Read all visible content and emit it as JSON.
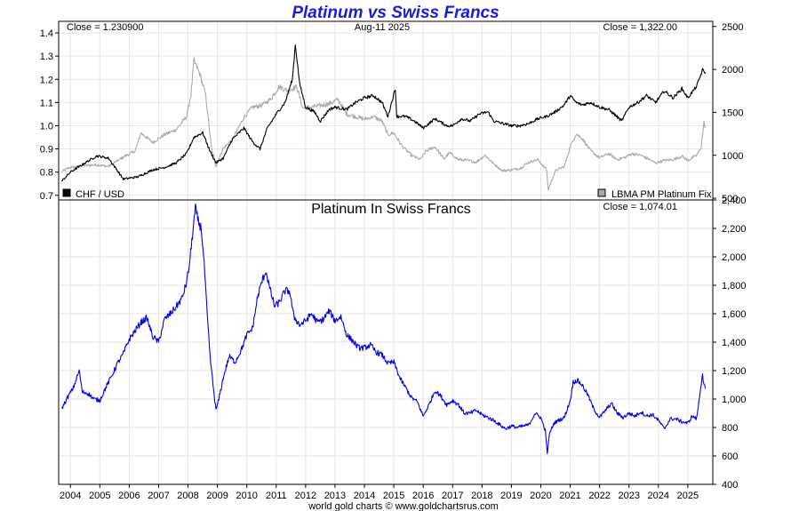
{
  "title": "Platinum vs Swiss Francs",
  "footer": "world gold charts © www.goldchartsrus.com",
  "colors": {
    "title": "#1a1ae6",
    "chf": "#000000",
    "platinum_usd": "#aaaaaa",
    "platinum_chf": "#0000ee"
  },
  "chart_data": [
    {
      "type": "line",
      "panel": "top",
      "date_label": "Aug-11  2025",
      "close_left": "Close = 1.230900",
      "close_right": "Close = 1,322.00",
      "x_ticks": [
        "2004",
        "2005",
        "2006",
        "2007",
        "2008",
        "2009",
        "2010",
        "2011",
        "2012",
        "2013",
        "2014",
        "2015",
        "2016",
        "2017",
        "2018",
        "2019",
        "2020",
        "2021",
        "2022",
        "2023",
        "2024",
        "2025"
      ],
      "left_axis": {
        "ylim": [
          0.68,
          1.45
        ],
        "ticks": [
          "0.7",
          "0.8",
          "0.9",
          "1.0",
          "1.1",
          "1.2",
          "1.3",
          "1.4"
        ]
      },
      "right_axis": {
        "ylim": [
          480,
          2560
        ],
        "ticks": [
          "500",
          "1000",
          "1500",
          "2000",
          "2500"
        ]
      },
      "grid": true,
      "legend": "bottom",
      "series": [
        {
          "name": "CHF / USD",
          "axis": "left",
          "x": [
            2003.7,
            2004.0,
            2004.5,
            2004.9,
            2005.3,
            2005.8,
            2006.3,
            2006.8,
            2007.2,
            2007.6,
            2007.95,
            2008.2,
            2008.5,
            2008.75,
            2008.95,
            2009.2,
            2009.5,
            2009.9,
            2010.2,
            2010.45,
            2010.7,
            2011.0,
            2011.3,
            2011.55,
            2011.65,
            2011.8,
            2012.0,
            2012.3,
            2012.5,
            2012.8,
            2013.0,
            2013.4,
            2013.7,
            2014.0,
            2014.3,
            2014.6,
            2014.8,
            2015.05,
            2015.1,
            2015.4,
            2015.7,
            2016.0,
            2016.4,
            2016.8,
            2017.0,
            2017.3,
            2017.6,
            2017.9,
            2018.2,
            2018.4,
            2018.7,
            2019.0,
            2019.3,
            2019.6,
            2019.9,
            2020.2,
            2020.5,
            2020.8,
            2021.0,
            2021.2,
            2021.4,
            2021.7,
            2022.0,
            2022.3,
            2022.5,
            2022.75,
            2023.0,
            2023.3,
            2023.6,
            2023.9,
            2024.2,
            2024.5,
            2024.8,
            2025.0,
            2025.3,
            2025.5,
            2025.6
          ],
          "y": [
            0.76,
            0.8,
            0.84,
            0.87,
            0.86,
            0.77,
            0.78,
            0.81,
            0.82,
            0.84,
            0.88,
            0.95,
            0.97,
            0.89,
            0.84,
            0.86,
            0.94,
            0.99,
            0.93,
            0.9,
            0.99,
            1.05,
            1.1,
            1.2,
            1.35,
            1.18,
            1.08,
            1.06,
            1.02,
            1.07,
            1.08,
            1.07,
            1.1,
            1.12,
            1.13,
            1.1,
            1.04,
            1.16,
            1.04,
            1.04,
            1.02,
            0.99,
            1.03,
            1.0,
            1.0,
            1.03,
            1.02,
            1.05,
            1.06,
            1.02,
            1.01,
            1.0,
            1.0,
            1.01,
            1.03,
            1.04,
            1.06,
            1.09,
            1.13,
            1.1,
            1.09,
            1.1,
            1.08,
            1.07,
            1.05,
            1.02,
            1.08,
            1.1,
            1.13,
            1.1,
            1.15,
            1.12,
            1.16,
            1.12,
            1.17,
            1.24,
            1.23
          ]
        },
        {
          "name": "LBMA PM Platinum Fix",
          "axis": "right",
          "x": [
            2003.7,
            2004.0,
            2004.5,
            2004.9,
            2005.3,
            2005.8,
            2006.2,
            2006.4,
            2006.8,
            2007.2,
            2007.6,
            2007.95,
            2008.1,
            2008.2,
            2008.4,
            2008.6,
            2008.8,
            2008.95,
            2009.2,
            2009.5,
            2009.9,
            2010.2,
            2010.5,
            2010.8,
            2011.1,
            2011.4,
            2011.7,
            2011.9,
            2012.2,
            2012.5,
            2012.8,
            2013.1,
            2013.4,
            2013.7,
            2014.0,
            2014.3,
            2014.6,
            2014.8,
            2015.0,
            2015.3,
            2015.6,
            2015.9,
            2016.1,
            2016.4,
            2016.7,
            2016.9,
            2017.2,
            2017.5,
            2017.8,
            2018.1,
            2018.4,
            2018.7,
            2019.0,
            2019.3,
            2019.6,
            2019.9,
            2020.2,
            2020.25,
            2020.5,
            2020.8,
            2021.0,
            2021.2,
            2021.4,
            2021.7,
            2022.0,
            2022.3,
            2022.6,
            2022.9,
            2023.1,
            2023.4,
            2023.7,
            2023.9,
            2024.2,
            2024.5,
            2024.8,
            2025.0,
            2025.3,
            2025.45,
            2025.55,
            2025.6
          ],
          "y": [
            810,
            860,
            880,
            890,
            870,
            980,
            1050,
            1260,
            1150,
            1240,
            1300,
            1450,
            1700,
            2100,
            1950,
            1700,
            1080,
            880,
            1080,
            1180,
            1440,
            1560,
            1580,
            1650,
            1800,
            1750,
            1800,
            1550,
            1560,
            1580,
            1600,
            1650,
            1480,
            1450,
            1420,
            1450,
            1400,
            1240,
            1260,
            1100,
            1000,
            950,
            1050,
            1100,
            960,
            1030,
            950,
            940,
            920,
            1000,
            900,
            820,
            830,
            850,
            920,
            950,
            830,
            600,
            820,
            870,
            1100,
            1250,
            1200,
            1050,
            970,
            1020,
            950,
            980,
            1020,
            1000,
            950,
            910,
            940,
            950,
            990,
            940,
            1000,
            1090,
            1380,
            1320
          ]
        }
      ]
    },
    {
      "type": "line",
      "panel": "bottom",
      "title": "Platinum In Swiss Francs",
      "close_right": "Close = 1,074.01",
      "ylim": [
        400,
        2400
      ],
      "y_ticks": [
        "400",
        "600",
        "800",
        "1,000",
        "1,200",
        "1,400",
        "1,600",
        "1,800",
        "2,000",
        "2,200",
        "2,400"
      ],
      "grid": true,
      "series": [
        {
          "name": "Platinum In Swiss Francs",
          "x": [
            2003.7,
            2003.9,
            2004.1,
            2004.3,
            2004.4,
            2004.6,
            2004.8,
            2005.0,
            2005.2,
            2005.4,
            2005.6,
            2005.8,
            2006.0,
            2006.2,
            2006.4,
            2006.6,
            2006.8,
            2007.0,
            2007.2,
            2007.4,
            2007.6,
            2007.8,
            2007.95,
            2008.05,
            2008.15,
            2008.25,
            2008.35,
            2008.45,
            2008.55,
            2008.65,
            2008.75,
            2008.85,
            2008.95,
            2009.05,
            2009.2,
            2009.4,
            2009.6,
            2009.8,
            2010.0,
            2010.2,
            2010.35,
            2010.5,
            2010.65,
            2010.8,
            2010.95,
            2011.1,
            2011.3,
            2011.45,
            2011.6,
            2011.8,
            2012.0,
            2012.2,
            2012.4,
            2012.6,
            2012.8,
            2013.0,
            2013.2,
            2013.4,
            2013.6,
            2013.8,
            2014.0,
            2014.2,
            2014.4,
            2014.6,
            2014.8,
            2015.0,
            2015.2,
            2015.4,
            2015.6,
            2015.8,
            2016.0,
            2016.2,
            2016.4,
            2016.6,
            2016.8,
            2017.0,
            2017.2,
            2017.4,
            2017.6,
            2017.8,
            2018.0,
            2018.2,
            2018.4,
            2018.6,
            2018.8,
            2019.0,
            2019.2,
            2019.4,
            2019.6,
            2019.8,
            2020.0,
            2020.15,
            2020.22,
            2020.3,
            2020.45,
            2020.6,
            2020.8,
            2021.0,
            2021.1,
            2021.25,
            2021.4,
            2021.6,
            2021.8,
            2022.0,
            2022.2,
            2022.4,
            2022.6,
            2022.8,
            2023.0,
            2023.2,
            2023.4,
            2023.6,
            2023.8,
            2024.0,
            2024.2,
            2024.4,
            2024.6,
            2024.8,
            2025.0,
            2025.15,
            2025.3,
            2025.4,
            2025.5,
            2025.55,
            2025.6
          ],
          "y": [
            930,
            1010,
            1080,
            1200,
            1050,
            1040,
            1000,
            990,
            1080,
            1160,
            1250,
            1320,
            1420,
            1480,
            1540,
            1570,
            1440,
            1400,
            1560,
            1600,
            1650,
            1710,
            1820,
            1950,
            2150,
            2340,
            2250,
            2200,
            1950,
            1600,
            1300,
            1100,
            920,
            1000,
            1150,
            1300,
            1260,
            1340,
            1450,
            1500,
            1700,
            1820,
            1900,
            1760,
            1650,
            1680,
            1760,
            1760,
            1580,
            1520,
            1550,
            1600,
            1540,
            1560,
            1620,
            1550,
            1580,
            1450,
            1410,
            1360,
            1360,
            1380,
            1330,
            1310,
            1250,
            1260,
            1150,
            1080,
            1010,
            980,
            880,
            960,
            1060,
            1020,
            960,
            990,
            960,
            900,
            900,
            920,
            890,
            870,
            850,
            820,
            790,
            810,
            800,
            810,
            820,
            900,
            870,
            780,
            620,
            760,
            830,
            850,
            870,
            990,
            1120,
            1130,
            1100,
            1030,
            930,
            870,
            920,
            970,
            900,
            870,
            900,
            880,
            910,
            880,
            890,
            850,
            790,
            860,
            860,
            840,
            830,
            880,
            860,
            1020,
            1180,
            1100,
            1074
          ]
        }
      ]
    }
  ]
}
